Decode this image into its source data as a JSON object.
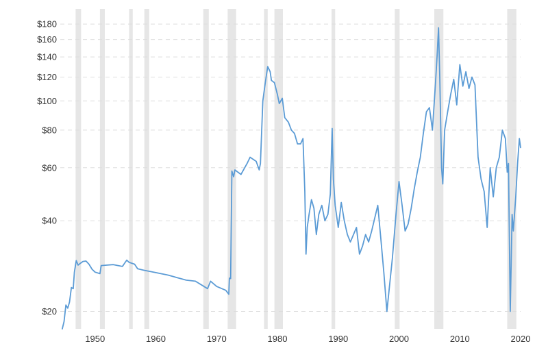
{
  "chart_data": {
    "type": "line",
    "title": "",
    "xlabel": "",
    "ylabel": "",
    "y_scale": "log",
    "xlim": [
      1944.5,
      2020
    ],
    "ylim": [
      17.5,
      200
    ],
    "grid": true,
    "colors": {
      "line": "#5b9bd5",
      "recession": "#e6e6e6",
      "grid": "#dddddd",
      "text": "#333333"
    },
    "x_ticks": [
      {
        "value": 1950,
        "label": "1950"
      },
      {
        "value": 1960,
        "label": "1960"
      },
      {
        "value": 1970,
        "label": "1970"
      },
      {
        "value": 1980,
        "label": "1980"
      },
      {
        "value": 1990,
        "label": "1990"
      },
      {
        "value": 2000,
        "label": "2000"
      },
      {
        "value": 2010,
        "label": "2010"
      },
      {
        "value": 2020,
        "label": "2020"
      }
    ],
    "y_ticks": [
      {
        "value": 20,
        "label": "$20"
      },
      {
        "value": 40,
        "label": "$40"
      },
      {
        "value": 60,
        "label": "$60"
      },
      {
        "value": 80,
        "label": "$80"
      },
      {
        "value": 100,
        "label": "$100"
      },
      {
        "value": 120,
        "label": "$120"
      },
      {
        "value": 140,
        "label": "$140"
      },
      {
        "value": 160,
        "label": "$160"
      },
      {
        "value": 180,
        "label": "$180"
      }
    ],
    "recessions": [
      [
        1946.8,
        1947.7
      ],
      [
        1950.8,
        1951.6
      ],
      [
        1955.6,
        1956.2
      ],
      [
        1958.1,
        1958.9
      ],
      [
        1967.8,
        1968.7
      ],
      [
        1971.8,
        1973.2
      ],
      [
        1977.8,
        1978.4
      ],
      [
        1979.5,
        1980.9
      ],
      [
        1988.9,
        1989.5
      ],
      [
        1999.3,
        2000.1
      ],
      [
        2005.8,
        2007.3
      ],
      [
        2017.8,
        2019.3
      ]
    ],
    "series": [
      {
        "values": [
          [
            1944.6,
            17.5
          ],
          [
            1944.9,
            18.5
          ],
          [
            1945.2,
            21
          ],
          [
            1945.5,
            20.5
          ],
          [
            1945.8,
            21.5
          ],
          [
            1946.1,
            24
          ],
          [
            1946.4,
            23.8
          ],
          [
            1946.6,
            27
          ],
          [
            1946.9,
            29.5
          ],
          [
            1947.2,
            28.5
          ],
          [
            1947.5,
            28.8
          ],
          [
            1948.0,
            29.3
          ],
          [
            1948.5,
            29.4
          ],
          [
            1949.0,
            28.7
          ],
          [
            1949.5,
            27.6
          ],
          [
            1950.0,
            27.0
          ],
          [
            1950.8,
            26.7
          ],
          [
            1951.0,
            28.4
          ],
          [
            1952.0,
            28.5
          ],
          [
            1953.0,
            28.6
          ],
          [
            1954.5,
            28.2
          ],
          [
            1955.2,
            29.6
          ],
          [
            1955.6,
            29.1
          ],
          [
            1956.5,
            28.7
          ],
          [
            1957.0,
            27.7
          ],
          [
            1958.0,
            27.4
          ],
          [
            1960.0,
            26.9
          ],
          [
            1962.0,
            26.4
          ],
          [
            1963.5,
            25.9
          ],
          [
            1965.0,
            25.4
          ],
          [
            1966.5,
            25.2
          ],
          [
            1967.5,
            24.5
          ],
          [
            1968.5,
            23.8
          ],
          [
            1969.0,
            25.2
          ],
          [
            1970.0,
            24.2
          ],
          [
            1971.5,
            23.5
          ],
          [
            1972.0,
            22.8
          ],
          [
            1972.1,
            25.8
          ],
          [
            1972.3,
            25.7
          ],
          [
            1972.5,
            58.5
          ],
          [
            1972.8,
            56
          ],
          [
            1973.0,
            59
          ],
          [
            1974.0,
            57
          ],
          [
            1975.0,
            62
          ],
          [
            1975.5,
            65
          ],
          [
            1976.5,
            63
          ],
          [
            1977.0,
            59
          ],
          [
            1977.2,
            62
          ],
          [
            1977.6,
            100
          ],
          [
            1978.0,
            115
          ],
          [
            1978.4,
            130
          ],
          [
            1978.8,
            125
          ],
          [
            1979.0,
            117
          ],
          [
            1979.5,
            115
          ],
          [
            1980.0,
            105
          ],
          [
            1980.3,
            98
          ],
          [
            1980.8,
            102
          ],
          [
            1981.2,
            88
          ],
          [
            1981.8,
            85
          ],
          [
            1982.3,
            80
          ],
          [
            1982.8,
            78
          ],
          [
            1983.3,
            72
          ],
          [
            1983.8,
            72
          ],
          [
            1984.2,
            75
          ],
          [
            1984.5,
            50
          ],
          [
            1984.7,
            31
          ],
          [
            1984.9,
            38
          ],
          [
            1985.2,
            42
          ],
          [
            1985.6,
            47
          ],
          [
            1986.0,
            44
          ],
          [
            1986.4,
            36
          ],
          [
            1986.8,
            42
          ],
          [
            1987.3,
            45
          ],
          [
            1987.8,
            40
          ],
          [
            1988.3,
            42
          ],
          [
            1988.7,
            49
          ],
          [
            1989.0,
            81
          ],
          [
            1989.2,
            55
          ],
          [
            1989.5,
            45
          ],
          [
            1990.0,
            38
          ],
          [
            1990.5,
            46
          ],
          [
            1991.0,
            40
          ],
          [
            1991.5,
            36
          ],
          [
            1992.0,
            34
          ],
          [
            1993.0,
            38
          ],
          [
            1993.5,
            31
          ],
          [
            1994.0,
            33
          ],
          [
            1994.5,
            36
          ],
          [
            1995.0,
            34
          ],
          [
            1995.5,
            37
          ],
          [
            1996.5,
            45
          ],
          [
            1997.0,
            35
          ],
          [
            1997.5,
            27
          ],
          [
            1998.0,
            20
          ],
          [
            1998.5,
            25
          ],
          [
            1998.9,
            30
          ],
          [
            1999.5,
            42
          ],
          [
            2000.0,
            54
          ],
          [
            2000.5,
            45
          ],
          [
            2001.0,
            37
          ],
          [
            2001.5,
            39
          ],
          [
            2002.0,
            44
          ],
          [
            2002.5,
            51
          ],
          [
            2003.0,
            58
          ],
          [
            2003.5,
            65
          ],
          [
            2004.0,
            78
          ],
          [
            2004.5,
            92
          ],
          [
            2005.0,
            95
          ],
          [
            2005.5,
            80
          ],
          [
            2006.0,
            115
          ],
          [
            2006.3,
            145
          ],
          [
            2006.5,
            175
          ],
          [
            2006.7,
            120
          ],
          [
            2007.0,
            60
          ],
          [
            2007.2,
            53
          ],
          [
            2007.5,
            80
          ],
          [
            2008.0,
            92
          ],
          [
            2008.5,
            105
          ],
          [
            2009.0,
            118
          ],
          [
            2009.5,
            97
          ],
          [
            2010.0,
            132
          ],
          [
            2010.5,
            112
          ],
          [
            2011.0,
            125
          ],
          [
            2011.5,
            110
          ],
          [
            2012.0,
            120
          ],
          [
            2012.5,
            113
          ],
          [
            2013.0,
            65
          ],
          [
            2013.5,
            55
          ],
          [
            2014.0,
            50
          ],
          [
            2014.5,
            38
          ],
          [
            2015.0,
            60
          ],
          [
            2015.5,
            48
          ],
          [
            2016.0,
            60
          ],
          [
            2016.5,
            65
          ],
          [
            2017.0,
            80
          ],
          [
            2017.5,
            75
          ],
          [
            2017.8,
            58
          ],
          [
            2018.0,
            62
          ],
          [
            2018.3,
            20
          ],
          [
            2018.6,
            42
          ],
          [
            2018.8,
            37
          ],
          [
            2019.2,
            48
          ],
          [
            2019.5,
            62
          ],
          [
            2019.8,
            75
          ],
          [
            2020.0,
            70
          ]
        ]
      }
    ]
  }
}
